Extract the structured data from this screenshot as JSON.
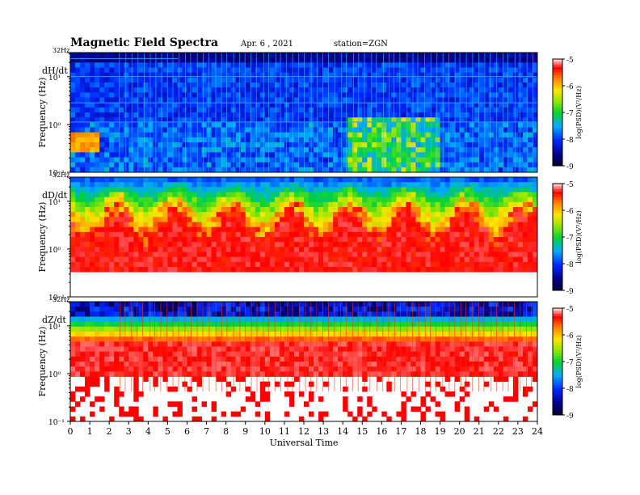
{
  "header": {
    "title": "Magnetic  Field  Spectra",
    "date": "Apr. 6  , 2021",
    "station": "station=ZGN"
  },
  "chart_data": [
    {
      "type": "heatmap",
      "panel_label": "dH/dt",
      "ylabel": "Frequency  (Hz)",
      "yscale": "log",
      "ylim": [
        0.1,
        32
      ],
      "yticks": [
        "32Hz",
        "10¹",
        "10⁰",
        "10⁻¹"
      ],
      "xlim": [
        0,
        24
      ],
      "colorbar": {
        "label": "log(PSD)(V²/Hz)",
        "range": [
          -9,
          -5
        ],
        "ticks": [
          "-5",
          "-6",
          "-7",
          "-8",
          "-9"
        ]
      },
      "description": "mostly low power (blue) with harmonic lines; enhanced broadband power 14-19 UT"
    },
    {
      "type": "heatmap",
      "panel_label": "dD/dt",
      "ylabel": "Frequency  (Hz)",
      "yscale": "log",
      "ylim": [
        0.1,
        32
      ],
      "yticks": [
        "32Hz",
        "10¹",
        "10⁰",
        "10⁻¹"
      ],
      "xlim": [
        0,
        24
      ],
      "colorbar": {
        "label": "log(PSD)(V²/Hz)",
        "range": [
          -9,
          -5
        ],
        "ticks": [
          "-5",
          "-6",
          "-7",
          "-8",
          "-9"
        ]
      },
      "description": "high power at low frequencies, transition band near 1-10 Hz"
    },
    {
      "type": "heatmap",
      "panel_label": "dZ/dt",
      "ylabel": "Frequency  (Hz)",
      "yscale": "log",
      "ylim": [
        0.1,
        32
      ],
      "yticks": [
        "32Hz",
        "10¹",
        "10⁰",
        "10⁻¹"
      ],
      "xlim": [
        0,
        24
      ],
      "xlabel": "Universal  Time",
      "xticks": [
        "0",
        "1",
        "2",
        "3",
        "4",
        "5",
        "6",
        "7",
        "8",
        "9",
        "10",
        "11",
        "12",
        "13",
        "14",
        "15",
        "16",
        "17",
        "18",
        "19",
        "20",
        "21",
        "22",
        "23",
        "24"
      ],
      "colorbar": {
        "label": "log(PSD)(V²/Hz)",
        "range": [
          -9,
          -5
        ],
        "ticks": [
          "-5",
          "-6",
          "-7",
          "-8",
          "-9"
        ]
      },
      "description": "strong band near 10 Hz with periodic vertical striations"
    }
  ],
  "colors": {
    "low": "#000066",
    "mid": "#00cc33",
    "high": "#ff0000",
    "zero": "#ffffff"
  }
}
